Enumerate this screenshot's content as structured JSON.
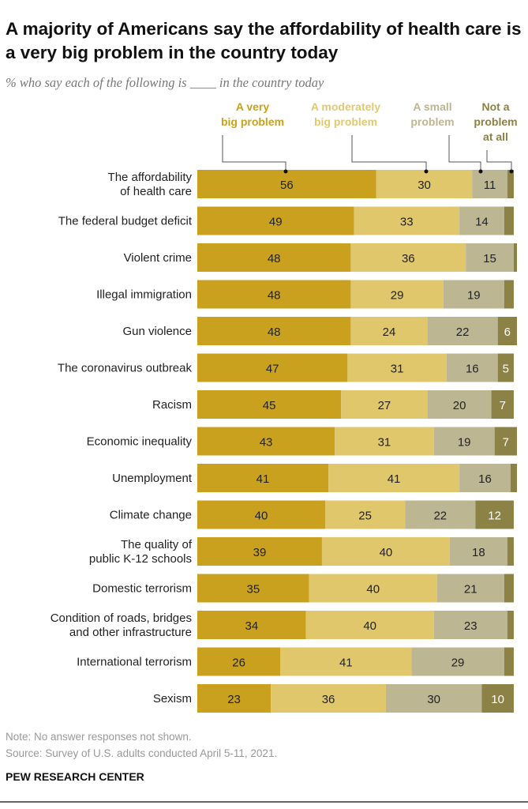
{
  "title": "A majority of Americans say the affordability of health care is a very big problem in the country today",
  "subtitle": "% who say each of the following is ____ in the country today",
  "note": "Note: No answer responses not shown.",
  "source": "Source: Survey of U.S. adults conducted April 5-11, 2021.",
  "brand": "PEW RESEARCH CENTER",
  "chart_data": {
    "type": "bar",
    "orientation": "horizontal",
    "stacked": true,
    "xlim": [
      0,
      100
    ],
    "categories": [
      [
        "The affordability",
        "of health care"
      ],
      [
        "The federal budget deficit"
      ],
      [
        "Violent crime"
      ],
      [
        "Illegal immigration"
      ],
      [
        "Gun violence"
      ],
      [
        "The coronavirus outbreak"
      ],
      [
        "Racism"
      ],
      [
        "Economic inequality"
      ],
      [
        "Unemployment"
      ],
      [
        "Climate change"
      ],
      [
        "The quality of",
        "public K-12 schools"
      ],
      [
        "Domestic terrorism"
      ],
      [
        "Condition of roads, bridges",
        "and other infrastructure"
      ],
      [
        "International terrorism"
      ],
      [
        "Sexism"
      ]
    ],
    "series": [
      {
        "name": [
          "A very",
          "big problem"
        ],
        "color": "#C9A11F",
        "legend_color": "#C9A11F",
        "labeled": [
          true,
          true,
          true,
          true,
          true,
          true,
          true,
          true,
          true,
          true,
          true,
          true,
          true,
          true,
          true
        ],
        "values": [
          56,
          49,
          48,
          48,
          48,
          47,
          45,
          43,
          41,
          40,
          39,
          35,
          34,
          26,
          23
        ]
      },
      {
        "name": [
          "A moderately",
          "big problem"
        ],
        "color": "#E0C76B",
        "legend_color": "#E2C96F",
        "labeled": [
          true,
          true,
          true,
          true,
          true,
          true,
          true,
          true,
          true,
          true,
          true,
          true,
          true,
          true,
          true
        ],
        "values": [
          30,
          33,
          36,
          29,
          24,
          31,
          27,
          31,
          41,
          25,
          40,
          40,
          40,
          41,
          36
        ]
      },
      {
        "name": [
          "A small",
          "problem"
        ],
        "color": "#BDB692",
        "legend_color": "#BDB692",
        "labeled": [
          true,
          true,
          true,
          true,
          true,
          true,
          true,
          true,
          true,
          true,
          true,
          true,
          true,
          true,
          true
        ],
        "values": [
          11,
          14,
          15,
          19,
          22,
          16,
          20,
          19,
          16,
          22,
          18,
          21,
          23,
          29,
          30
        ]
      },
      {
        "name": [
          "Not a",
          "problem",
          "at all"
        ],
        "color": "#8C8245",
        "legend_color": "#8C8245",
        "labeled": [
          false,
          false,
          false,
          false,
          true,
          true,
          true,
          true,
          false,
          true,
          false,
          false,
          false,
          false,
          true
        ],
        "values": [
          2,
          3,
          1,
          3,
          6,
          5,
          7,
          7,
          2,
          12,
          2,
          3,
          2,
          3,
          10
        ]
      }
    ]
  }
}
